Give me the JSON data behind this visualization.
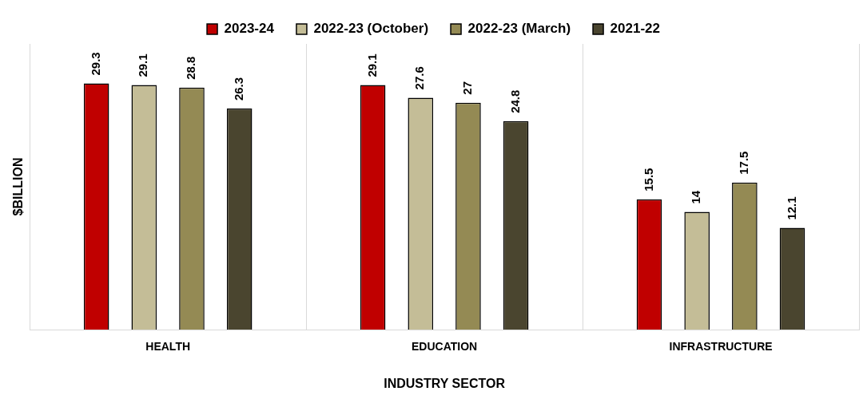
{
  "chart_data": {
    "type": "bar",
    "xlabel": "INDUSTRY SECTOR",
    "ylabel": "$BILLION",
    "categories": [
      "HEALTH",
      "EDUCATION",
      "INFRASTRUCTURE"
    ],
    "series": [
      {
        "name": "2023-24",
        "color": "#c00000",
        "values": [
          29.3,
          29.1,
          15.5
        ]
      },
      {
        "name": "2022-23 (October)",
        "color": "#c4bd97",
        "values": [
          29.1,
          27.6,
          14
        ]
      },
      {
        "name": "2022-23 (March)",
        "color": "#948a54",
        "values": [
          28.8,
          27,
          17.5
        ]
      },
      {
        "name": "2021-22",
        "color": "#4a452f",
        "values": [
          26.3,
          24.8,
          12.1
        ]
      }
    ],
    "ylim": [
      0,
      34
    ],
    "grid": "x",
    "legend": "top",
    "tick_labels": "x",
    "data_labels": true
  }
}
